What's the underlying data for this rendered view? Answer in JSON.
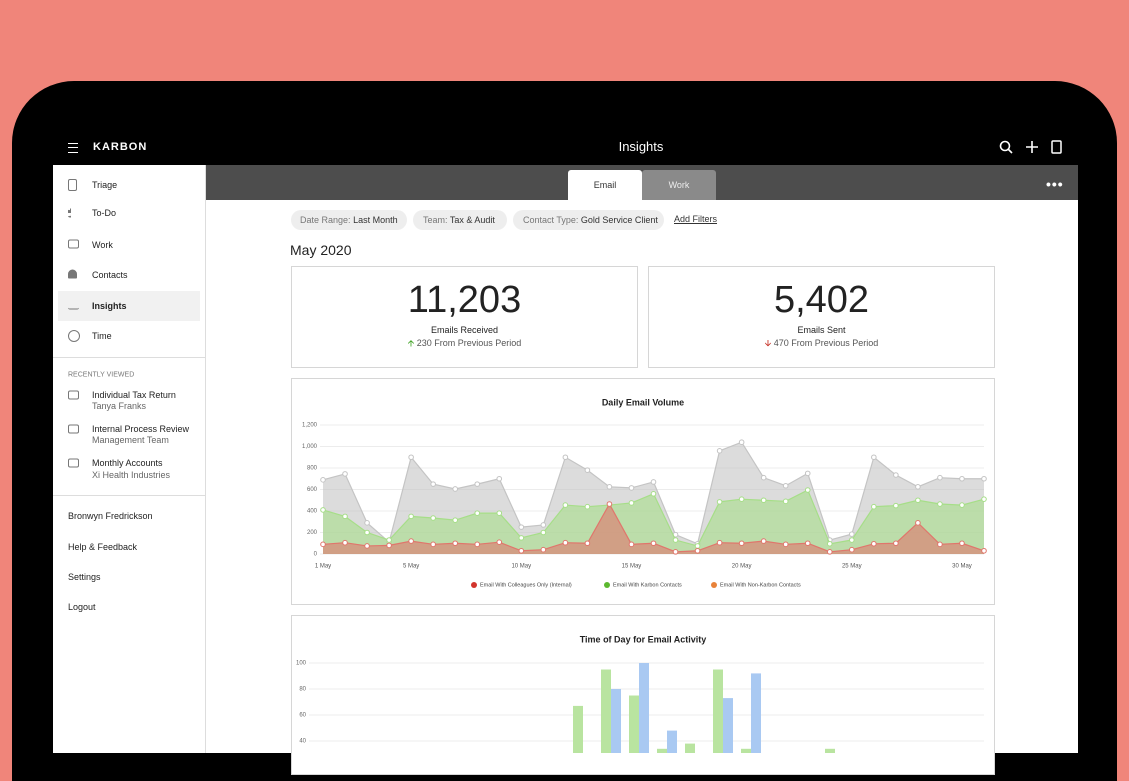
{
  "header": {
    "brand": "KARBON",
    "title": "Insights"
  },
  "sidebar": {
    "nav": [
      "Triage",
      "To-Do",
      "Work",
      "Contacts",
      "Insights",
      "Time"
    ],
    "recent_heading": "RECENTLY VIEWED",
    "recent": [
      {
        "title": "Individual Tax Return",
        "subtitle": "Tanya Franks"
      },
      {
        "title": "Internal Process Review",
        "subtitle": "Management Team"
      },
      {
        "title": "Monthly Accounts",
        "subtitle": "Xi Health Industries"
      }
    ],
    "user": "Bronwyn Fredrickson",
    "links": [
      "Help & Feedback",
      "Settings",
      "Logout"
    ]
  },
  "tabs": [
    "Email",
    "Work"
  ],
  "filters": [
    {
      "label": "Date Range:",
      "value": "Last Month"
    },
    {
      "label": "Team:",
      "value": "Tax & Audit"
    },
    {
      "label": "Contact Type:",
      "value": "Gold Service Client"
    }
  ],
  "add_filters": "Add Filters",
  "period": "May 2020",
  "stats": [
    {
      "value": "11,203",
      "label": "Emails Received",
      "change": "230",
      "change_text": "From Previous Period"
    },
    {
      "value": "5,402",
      "label": "Emails Sent",
      "change": "470",
      "change_text": "From Previous Period"
    }
  ],
  "chart_data": [
    {
      "type": "area",
      "title": "Daily Email Volume",
      "categories": [
        "1 May",
        null,
        null,
        null,
        "5 May",
        null,
        null,
        null,
        null,
        "10 May",
        null,
        null,
        null,
        null,
        "15 May",
        null,
        null,
        null,
        null,
        "20 May",
        null,
        null,
        null,
        null,
        "25 May",
        null,
        null,
        null,
        null,
        "30 May",
        null
      ],
      "series": [
        {
          "name": "Email With Colleagues Only (Internal)",
          "color": "#d2342c",
          "area_color": "#e0766c",
          "values": [
            90,
            105,
            75,
            80,
            120,
            90,
            100,
            90,
            110,
            30,
            40,
            105,
            100,
            465,
            90,
            100,
            20,
            30,
            105,
            100,
            120,
            90,
            100,
            20,
            40,
            95,
            100,
            290,
            90,
            100,
            30
          ]
        },
        {
          "name": "Email With Karbon Contacts",
          "color": "#5cb82f",
          "area_color": "#a6de88",
          "values": [
            410,
            350,
            200,
            130,
            350,
            335,
            315,
            380,
            380,
            150,
            200,
            455,
            440,
            455,
            475,
            560,
            130,
            75,
            485,
            510,
            500,
            490,
            595,
            95,
            130,
            440,
            450,
            500,
            465,
            455,
            510
          ]
        },
        {
          "name": "Email With Non-Karbon Contacts",
          "color": "#e8823a",
          "area_color": "#c4c4c4",
          "values": [
            690,
            745,
            290,
            110,
            900,
            650,
            605,
            650,
            700,
            250,
            270,
            900,
            780,
            625,
            615,
            670,
            180,
            95,
            960,
            1040,
            710,
            635,
            750,
            130,
            185,
            900,
            735,
            625,
            710,
            700,
            700
          ]
        }
      ],
      "ylim": [
        0,
        1200
      ],
      "yticks": [
        0,
        200,
        400,
        600,
        800,
        {
          "value": 1000,
          "label": "1,000"
        },
        {
          "value": 1200,
          "label": "1,200"
        }
      ],
      "grid": true
    },
    {
      "type": "bar",
      "title": "Time of Day for Email Activity",
      "categories": [
        null,
        null,
        null,
        null,
        null,
        null,
        null,
        null,
        null,
        null,
        null,
        null,
        null,
        null,
        null,
        null,
        null,
        null,
        null,
        null,
        null,
        null,
        null,
        null
      ],
      "series": [
        {
          "color": "#b9e4a0",
          "values": [
            0,
            0,
            0,
            0,
            0,
            0,
            0,
            0,
            0,
            67,
            95,
            75,
            34,
            38,
            95,
            34,
            0,
            0,
            34,
            0,
            0,
            0,
            0,
            0
          ]
        },
        {
          "color": "#a9c9f2",
          "values": [
            0,
            0,
            0,
            0,
            0,
            0,
            0,
            0,
            0,
            0,
            80,
            100,
            48,
            0,
            73,
            92,
            0,
            0,
            0,
            0,
            0,
            0,
            0,
            0
          ]
        }
      ],
      "ylim": [
        0,
        100
      ],
      "yticks": [
        40,
        60,
        80,
        100
      ],
      "grid": true
    }
  ]
}
